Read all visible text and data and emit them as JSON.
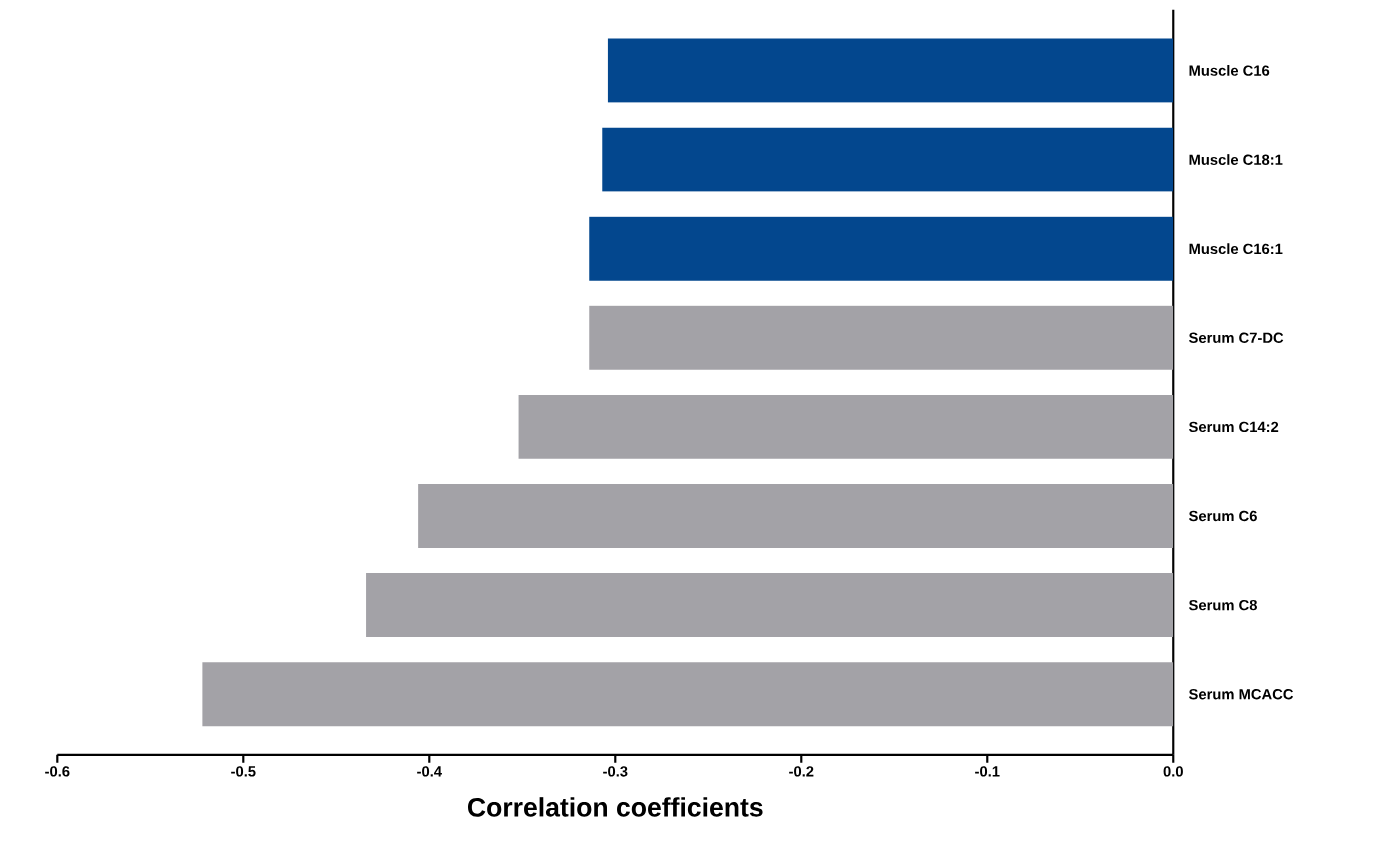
{
  "chart_data": {
    "type": "bar",
    "orientation": "horizontal",
    "xlabel": "Correlation coefficients",
    "categories": [
      "Muscle C16",
      "Muscle C18:1",
      "Muscle C16:1",
      "Serum C7-DC",
      "Serum C14:2",
      "Serum C6",
      "Serum C8",
      "Serum MCACC"
    ],
    "values": [
      -0.304,
      -0.307,
      -0.314,
      -0.314,
      -0.352,
      -0.406,
      -0.434,
      -0.522
    ],
    "colors": [
      "#03478e",
      "#03478e",
      "#03478e",
      "#a3a2a7",
      "#a3a2a7",
      "#a3a2a7",
      "#a3a2a7",
      "#a3a2a7"
    ],
    "xlim": [
      -0.6,
      0
    ],
    "xticks": [
      -0.6,
      -0.5,
      -0.4,
      -0.3,
      -0.2,
      -0.1,
      {
        "value": 0,
        "label": "0.0"
      }
    ],
    "grid": false
  }
}
